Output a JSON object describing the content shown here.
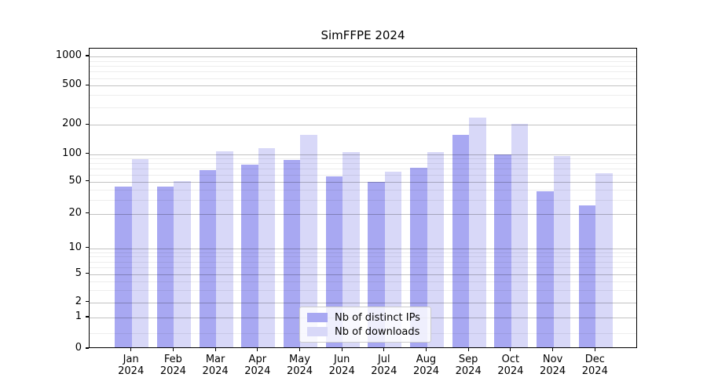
{
  "title": "SimFFPE 2024",
  "chart_data": {
    "type": "bar",
    "title": "SimFFPE 2024",
    "xlabel": "",
    "ylabel": "",
    "x_categories": [
      "Jan",
      "Feb",
      "Mar",
      "Apr",
      "May",
      "Jun",
      "Jul",
      "Aug",
      "Sep",
      "Oct",
      "Nov",
      "Dec"
    ],
    "x_sublabel": "2024",
    "series": [
      {
        "name": "Nb of distinct IPs",
        "color": "#a8a8f2",
        "values": [
          42,
          42,
          65,
          74,
          84,
          55,
          48,
          69,
          152,
          96,
          36,
          24
        ]
      },
      {
        "name": "Nb of downloads",
        "color": "#d8d8f8",
        "values": [
          85,
          49,
          103,
          112,
          152,
          102,
          62,
          102,
          228,
          197,
          92,
          60
        ]
      }
    ],
    "y_axis": {
      "scale": "symlog",
      "ticks": [
        0,
        1,
        2,
        5,
        10,
        20,
        50,
        100,
        200,
        500,
        1000
      ],
      "range_top": 1250
    },
    "legend": {
      "position": "lower-center"
    },
    "grid": {
      "major": true,
      "minor": true
    }
  }
}
